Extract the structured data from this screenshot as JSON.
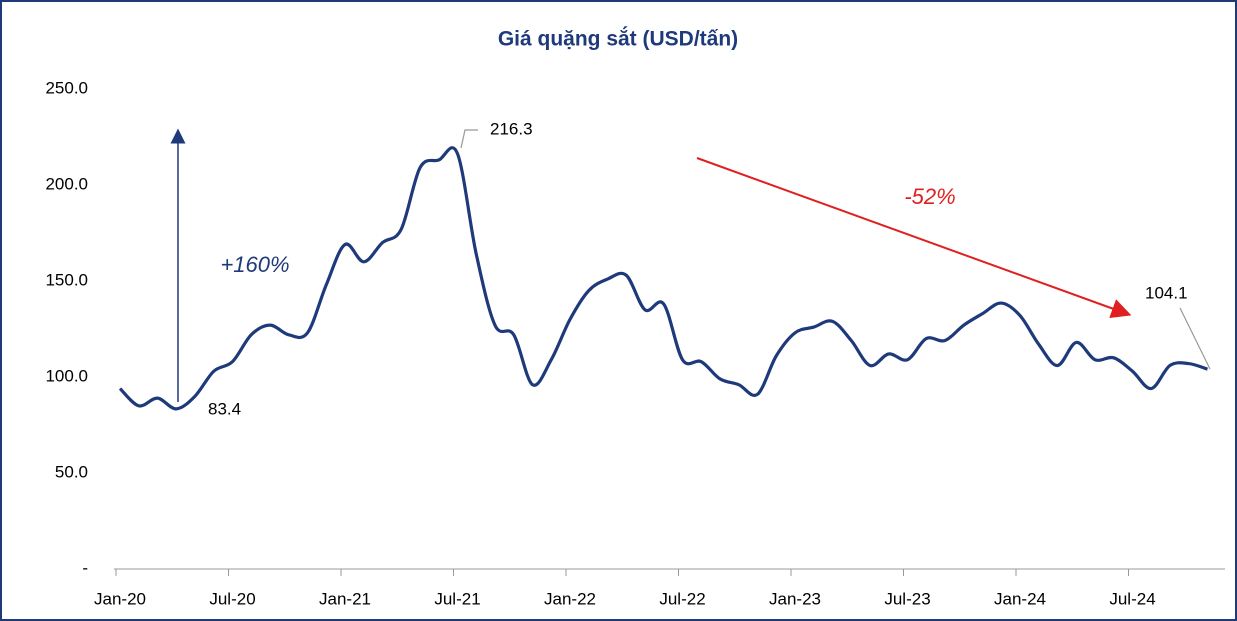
{
  "chart_data": {
    "type": "line",
    "title": "Giá quặng sắt (USD/tấn)",
    "categories": [
      "Jan-20",
      null,
      null,
      null,
      null,
      null,
      "Jul-20",
      null,
      null,
      null,
      null,
      null,
      "Jan-21",
      null,
      null,
      null,
      null,
      null,
      "Jul-21",
      null,
      null,
      null,
      null,
      null,
      "Jan-22",
      null,
      null,
      null,
      null,
      null,
      "Jul-22",
      null,
      null,
      null,
      null,
      null,
      "Jan-23",
      null,
      null,
      null,
      null,
      null,
      "Jul-23",
      null,
      null,
      null,
      null,
      null,
      "Jan-24",
      null,
      null,
      null,
      null,
      null,
      "Jul-24",
      null,
      null,
      null,
      null
    ],
    "series": [
      {
        "color": "#1f3a7a",
        "values": [
          94,
          85,
          89,
          83.4,
          90,
          103,
          108,
          122,
          127,
          122,
          123,
          148,
          169,
          160,
          170,
          177,
          209,
          213,
          216.3,
          164,
          127,
          122,
          96,
          109,
          130,
          145,
          151,
          153,
          135,
          138,
          109,
          108,
          99,
          96,
          91,
          111,
          123,
          126,
          129,
          119,
          106,
          112,
          109,
          120,
          119,
          127,
          133,
          138.5,
          132,
          117,
          106,
          118,
          109,
          110,
          103,
          94,
          106,
          107,
          104.1
        ]
      }
    ],
    "ylim": [
      0,
      250
    ],
    "yticks": [
      {
        "value": 0,
        "label": "-"
      },
      {
        "value": 50,
        "label": "50.0"
      },
      {
        "value": 100,
        "label": "100.0"
      },
      {
        "value": 150,
        "label": "150.0"
      },
      {
        "value": 200,
        "label": "200.0"
      },
      {
        "value": 250,
        "label": "250.0"
      }
    ],
    "grid": false,
    "annotations": [
      "+160%",
      "-52%"
    ]
  }
}
